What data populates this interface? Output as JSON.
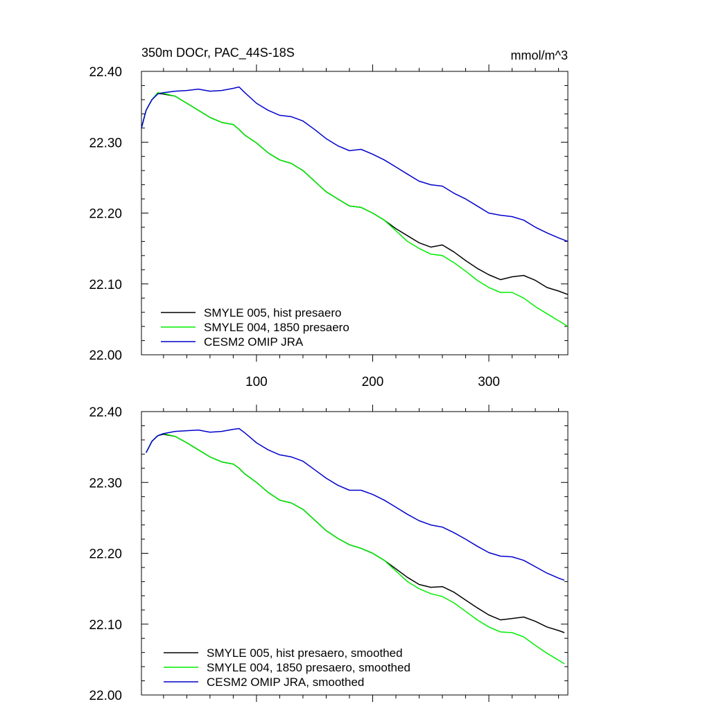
{
  "colors": {
    "smyle005": "#000000",
    "smyle004": "#00ee00",
    "cesm2": "#0000cc"
  },
  "chart_data": [
    {
      "type": "line",
      "title_left": "350m DOCr, PAC_44S-18S",
      "title_right": "mmol/m^3",
      "xlim": [
        1,
        368
      ],
      "ylim": [
        22.0,
        22.4
      ],
      "yticks": [
        "22.00",
        "22.10",
        "22.20",
        "22.30",
        "22.40"
      ],
      "xticks": [
        "100",
        "200",
        "300"
      ],
      "x": [
        1,
        5,
        10,
        15,
        20,
        30,
        40,
        50,
        60,
        70,
        80,
        85,
        90,
        100,
        110,
        120,
        130,
        140,
        150,
        160,
        170,
        180,
        190,
        200,
        210,
        220,
        230,
        240,
        250,
        260,
        270,
        280,
        290,
        300,
        310,
        320,
        330,
        340,
        350,
        360,
        368
      ],
      "series": [
        {
          "name": "SMYLE 005, hist presaero",
          "color": "#000000",
          "values": [
            22.32,
            22.345,
            22.36,
            22.369,
            22.368,
            22.365,
            22.355,
            22.345,
            22.335,
            22.328,
            22.325,
            22.318,
            22.31,
            22.299,
            22.285,
            22.275,
            22.27,
            22.26,
            22.245,
            22.23,
            22.22,
            22.21,
            22.208,
            22.2,
            22.19,
            22.178,
            22.168,
            22.158,
            22.152,
            22.155,
            22.145,
            22.133,
            22.122,
            22.113,
            22.106,
            22.11,
            22.112,
            22.105,
            22.095,
            22.09,
            22.085
          ]
        },
        {
          "name": "SMYLE 004, 1850 presaero",
          "color": "#00ee00",
          "values": [
            22.32,
            22.345,
            22.36,
            22.37,
            22.369,
            22.365,
            22.355,
            22.345,
            22.335,
            22.328,
            22.325,
            22.318,
            22.31,
            22.299,
            22.285,
            22.275,
            22.27,
            22.26,
            22.245,
            22.23,
            22.22,
            22.21,
            22.208,
            22.2,
            22.19,
            22.175,
            22.16,
            22.15,
            22.142,
            22.14,
            22.13,
            22.118,
            22.105,
            22.095,
            22.088,
            22.088,
            22.08,
            22.068,
            22.058,
            22.048,
            22.04
          ]
        },
        {
          "name": "CESM2 OMIP JRA",
          "color": "#0000cc",
          "values": [
            22.32,
            22.345,
            22.36,
            22.368,
            22.37,
            22.372,
            22.373,
            22.375,
            22.372,
            22.373,
            22.376,
            22.378,
            22.37,
            22.355,
            22.345,
            22.338,
            22.336,
            22.33,
            22.318,
            22.305,
            22.295,
            22.288,
            22.29,
            22.283,
            22.275,
            22.265,
            22.255,
            22.245,
            22.24,
            22.238,
            22.228,
            22.22,
            22.21,
            22.2,
            22.197,
            22.195,
            22.19,
            22.18,
            22.172,
            22.165,
            22.16
          ]
        }
      ],
      "legend": {
        "placement": "bottom-left"
      }
    },
    {
      "type": "line",
      "xlim": [
        1,
        368
      ],
      "ylim": [
        22.0,
        22.4
      ],
      "yticks": [
        "22.00",
        "22.10",
        "22.20",
        "22.30",
        "22.40"
      ],
      "x": [
        5,
        10,
        15,
        20,
        30,
        40,
        50,
        60,
        70,
        80,
        85,
        90,
        100,
        110,
        120,
        130,
        140,
        150,
        160,
        170,
        180,
        190,
        200,
        210,
        220,
        230,
        240,
        250,
        260,
        270,
        280,
        290,
        300,
        310,
        320,
        330,
        340,
        350,
        360,
        365
      ],
      "series": [
        {
          "name": "SMYLE 005, hist presaero, smoothed",
          "color": "#000000",
          "values": [
            22.342,
            22.358,
            22.366,
            22.368,
            22.365,
            22.356,
            22.346,
            22.336,
            22.329,
            22.326,
            22.32,
            22.312,
            22.3,
            22.286,
            22.275,
            22.271,
            22.262,
            22.247,
            22.232,
            22.221,
            22.212,
            22.207,
            22.2,
            22.19,
            22.178,
            22.166,
            22.156,
            22.152,
            22.153,
            22.145,
            22.134,
            22.123,
            22.113,
            22.106,
            22.108,
            22.11,
            22.104,
            22.096,
            22.091,
            22.088
          ]
        },
        {
          "name": "SMYLE 004, 1850 presaero, smoothed",
          "color": "#00ee00",
          "values": [
            22.342,
            22.358,
            22.366,
            22.369,
            22.365,
            22.356,
            22.346,
            22.336,
            22.329,
            22.326,
            22.32,
            22.312,
            22.3,
            22.286,
            22.275,
            22.271,
            22.262,
            22.247,
            22.232,
            22.221,
            22.212,
            22.207,
            22.2,
            22.19,
            22.175,
            22.16,
            22.15,
            22.143,
            22.139,
            22.13,
            22.118,
            22.106,
            22.096,
            22.089,
            22.088,
            22.082,
            22.07,
            22.059,
            22.049,
            22.044
          ]
        },
        {
          "name": "CESM2 OMIP JRA, smoothed",
          "color": "#0000cc",
          "values": [
            22.342,
            22.358,
            22.366,
            22.369,
            22.372,
            22.373,
            22.374,
            22.371,
            22.372,
            22.375,
            22.376,
            22.37,
            22.356,
            22.346,
            22.339,
            22.336,
            22.33,
            22.318,
            22.306,
            22.296,
            22.289,
            22.289,
            22.283,
            22.275,
            22.265,
            22.255,
            22.246,
            22.24,
            22.237,
            22.229,
            22.22,
            22.21,
            22.201,
            22.196,
            22.195,
            22.19,
            22.181,
            22.172,
            22.165,
            22.162
          ]
        }
      ],
      "legend": {
        "placement": "bottom-left"
      }
    }
  ]
}
